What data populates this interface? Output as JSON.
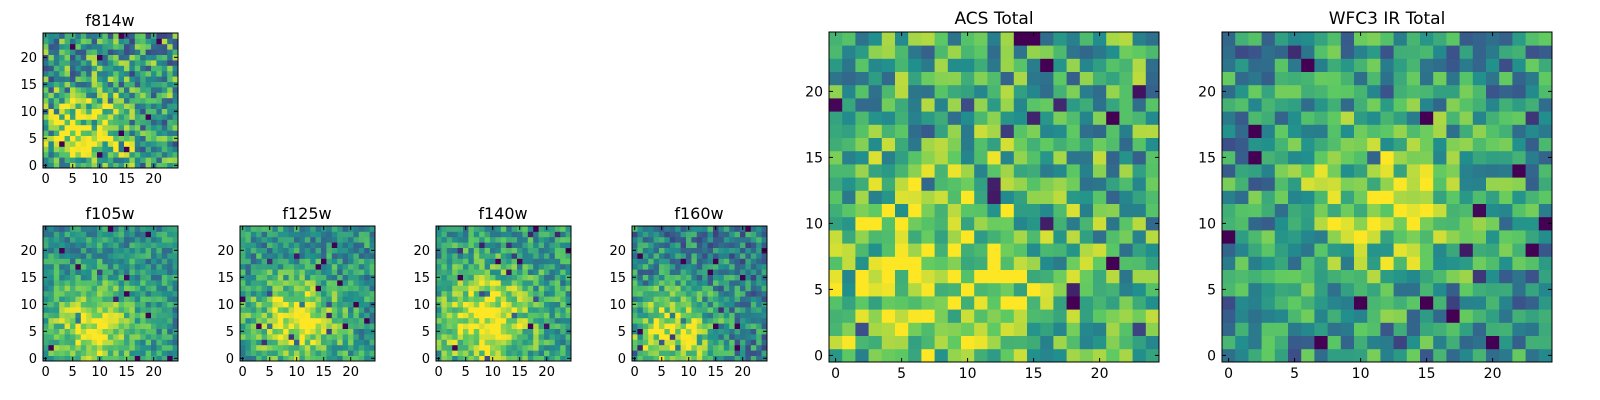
{
  "figure": {
    "description_free": true,
    "colormap": "viridis",
    "colormap_stops": [
      "#440154",
      "#3b528b",
      "#21908d",
      "#5dc963",
      "#fde725"
    ]
  },
  "chart_data": [
    {
      "id": "f814w",
      "type": "heatmap",
      "title": "f814w",
      "grid_size": 25,
      "xticks": [
        "0",
        "5",
        "10",
        "15",
        "20"
      ],
      "yticks": [
        "0",
        "5",
        "10",
        "15",
        "20"
      ],
      "xlim": [
        0,
        24
      ],
      "ylim": [
        0,
        24
      ],
      "signal": {
        "center": [
          8,
          6
        ],
        "sigma": 5.0,
        "peak": 0.35
      },
      "base": 0.55,
      "noise": 0.35,
      "seed": 11,
      "blocky": 1
    },
    {
      "id": "f105w",
      "type": "heatmap",
      "title": "f105w",
      "grid_size": 25,
      "xticks": [
        "0",
        "5",
        "10",
        "15",
        "20"
      ],
      "yticks": [
        "0",
        "5",
        "10",
        "15",
        "20"
      ],
      "xlim": [
        0,
        24
      ],
      "ylim": [
        0,
        24
      ],
      "signal": {
        "center": [
          9,
          6
        ],
        "sigma": 6.0,
        "peak": 0.45
      },
      "base": 0.5,
      "noise": 0.2,
      "seed": 21,
      "blocky": 1
    },
    {
      "id": "f125w",
      "type": "heatmap",
      "title": "f125w",
      "grid_size": 25,
      "xticks": [
        "0",
        "5",
        "10",
        "15",
        "20"
      ],
      "yticks": [
        "0",
        "5",
        "10",
        "15",
        "20"
      ],
      "xlim": [
        0,
        24
      ],
      "ylim": [
        0,
        24
      ],
      "signal": {
        "center": [
          10,
          7
        ],
        "sigma": 6.0,
        "peak": 0.45
      },
      "base": 0.5,
      "noise": 0.22,
      "seed": 31,
      "blocky": 1
    },
    {
      "id": "f140w",
      "type": "heatmap",
      "title": "f140w",
      "grid_size": 25,
      "xticks": [
        "0",
        "5",
        "10",
        "15",
        "20"
      ],
      "yticks": [
        "0",
        "5",
        "10",
        "15",
        "20"
      ],
      "xlim": [
        0,
        24
      ],
      "ylim": [
        0,
        24
      ],
      "signal": {
        "center": [
          9,
          7
        ],
        "sigma": 6.0,
        "peak": 0.45
      },
      "base": 0.55,
      "noise": 0.22,
      "seed": 41,
      "blocky": 1
    },
    {
      "id": "f160w",
      "type": "heatmap",
      "title": "f160w",
      "grid_size": 25,
      "xticks": [
        "0",
        "5",
        "10",
        "15",
        "20"
      ],
      "yticks": [
        "0",
        "5",
        "10",
        "15",
        "20"
      ],
      "xlim": [
        0,
        24
      ],
      "ylim": [
        0,
        24
      ],
      "signal": {
        "center": [
          7,
          5
        ],
        "sigma": 5.5,
        "peak": 0.5
      },
      "base": 0.45,
      "noise": 0.25,
      "seed": 51,
      "blocky": 1
    },
    {
      "id": "acs_total",
      "type": "heatmap",
      "title": "ACS Total",
      "grid_size": 25,
      "xticks": [
        "0",
        "5",
        "10",
        "15",
        "20"
      ],
      "yticks": [
        "0",
        "5",
        "10",
        "15",
        "20"
      ],
      "xlim": [
        0,
        24
      ],
      "ylim": [
        0,
        24
      ],
      "signal": {
        "center": [
          8,
          6
        ],
        "sigma": 6.0,
        "peak": 0.3
      },
      "base": 0.6,
      "noise": 0.3,
      "seed": 61,
      "blocky": 1
    },
    {
      "id": "wfc3_ir_total",
      "type": "heatmap",
      "title": "WFC3 IR Total",
      "grid_size": 25,
      "xticks": [
        "0",
        "5",
        "10",
        "15",
        "20"
      ],
      "yticks": [
        "0",
        "5",
        "10",
        "15",
        "20"
      ],
      "xlim": [
        0,
        24
      ],
      "ylim": [
        0,
        24
      ],
      "signal": {
        "center": [
          12,
          12
        ],
        "sigma": 5.0,
        "peak": 0.35
      },
      "base": 0.5,
      "noise": 0.28,
      "seed": 71,
      "blocky": 1
    }
  ]
}
